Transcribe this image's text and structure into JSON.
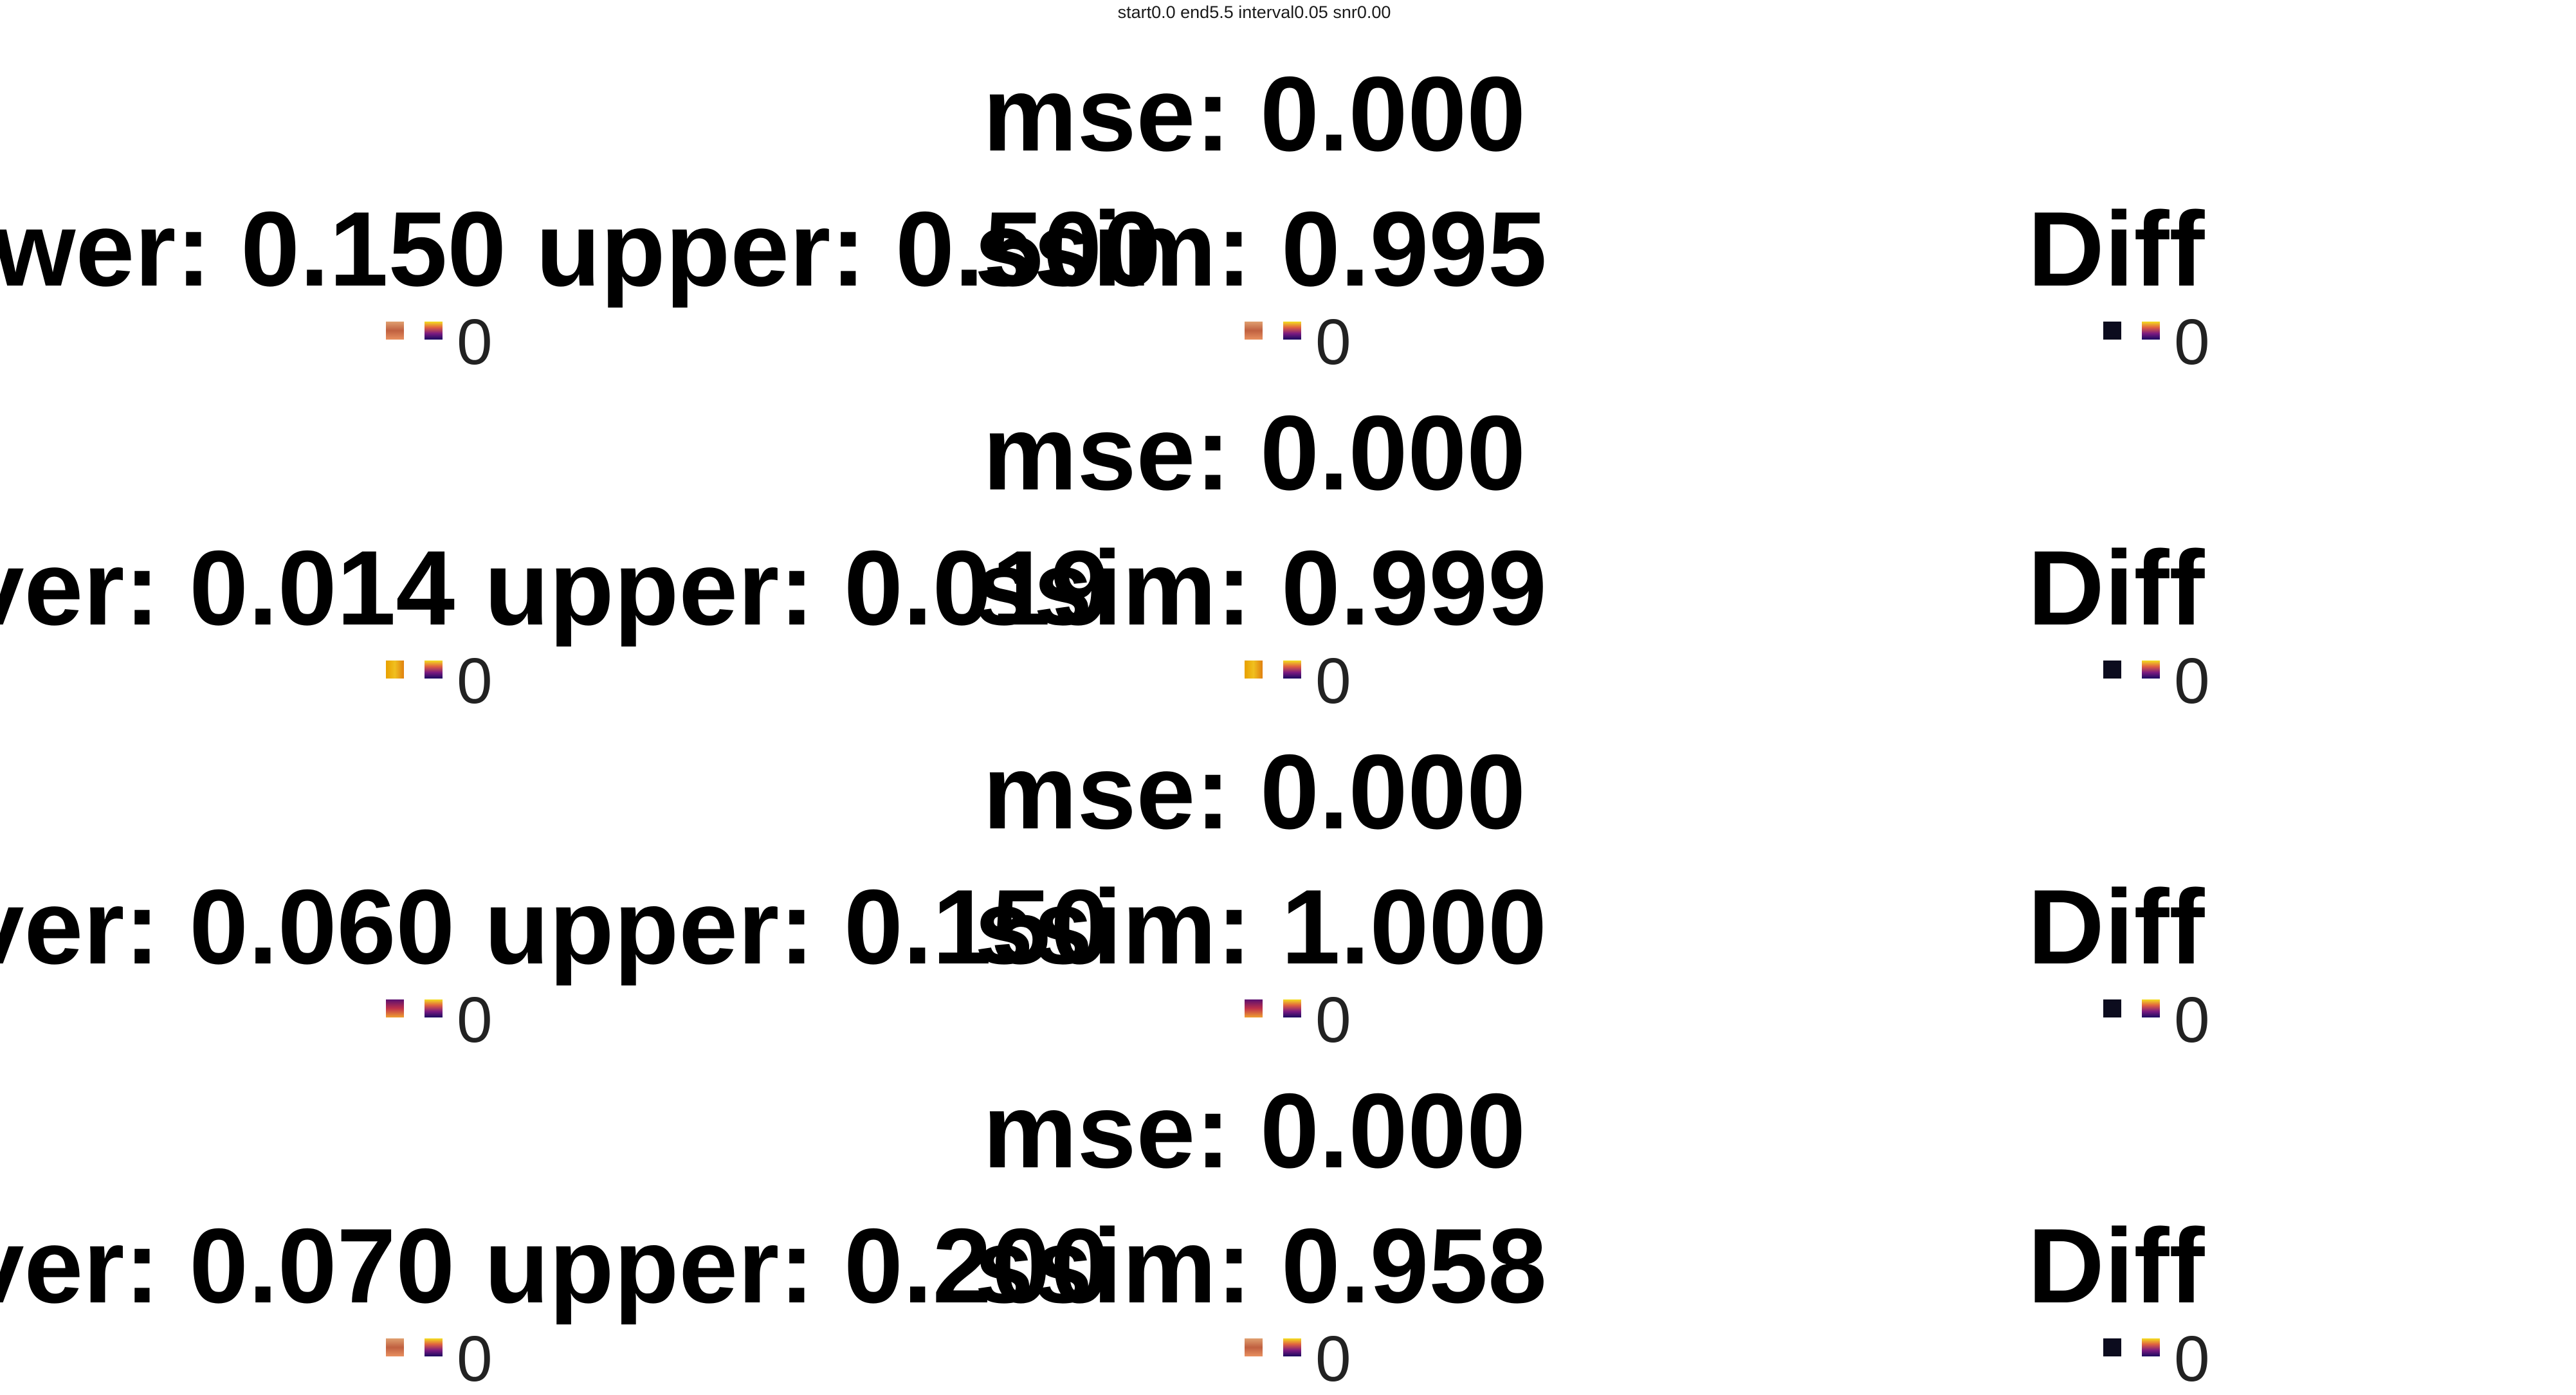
{
  "suptitle": "start0.0 end5.5 interval0.05 snr0.00",
  "colors": {
    "text": "#000000",
    "tick": "#222222",
    "diff_swatch": "#0c0c1e"
  },
  "chart_data": {
    "type": "heatmap",
    "title": "start0.0 end5.5 interval0.05 snr0.00",
    "rows": [
      {
        "window_title": "wer: 0.150 upper: 0.500",
        "mse_label": "mse: 0.000",
        "ssim_label": "ssim: 0.995",
        "diff_title": "Diff",
        "lower": 0.15,
        "upper": 0.5,
        "mse": 0.0,
        "ssim": 0.995,
        "colorbar_tick": "0"
      },
      {
        "window_title": "ver: 0.014 upper: 0.019",
        "mse_label": "mse: 0.000",
        "ssim_label": "ssim: 0.999",
        "diff_title": "Diff",
        "lower": 0.014,
        "upper": 0.019,
        "mse": 0.0,
        "ssim": 0.999,
        "colorbar_tick": "0"
      },
      {
        "window_title": "ver: 0.060 upper: 0.150",
        "mse_label": "mse: 0.000",
        "ssim_label": "ssim: 1.000",
        "diff_title": "Diff",
        "lower": 0.06,
        "upper": 0.15,
        "mse": 0.0,
        "ssim": 1.0,
        "colorbar_tick": "0"
      },
      {
        "window_title": "ver: 0.070 upper: 0.200",
        "mse_label": "mse: 0.000",
        "ssim_label": "ssim: 0.958",
        "diff_title": "Diff",
        "lower": 0.07,
        "upper": 0.2,
        "mse": 0.0,
        "ssim": 0.958,
        "colorbar_tick": "0"
      }
    ]
  }
}
